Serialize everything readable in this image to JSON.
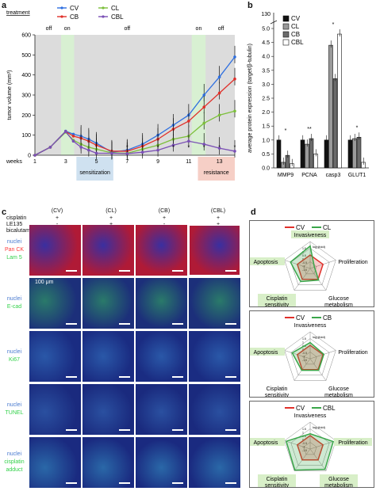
{
  "figure": {
    "panel_labels": [
      "a",
      "b",
      "c",
      "d"
    ]
  },
  "panel_a": {
    "treatment_label": "treatment",
    "phases": [
      "off",
      "on",
      "off",
      "on",
      "off"
    ],
    "shade_colors": {
      "gray": "#dcdcdc",
      "green": "#d8f0d2",
      "sensitization": "#cfe1f0",
      "resistance": "#f6cfc6"
    },
    "sensitization_label": "sensitization",
    "resistance_label": "resistance",
    "weeks_label": "weeks",
    "chart_data": {
      "type": "line",
      "ylabel": "tumor volume (mm³)",
      "xlabel": "weeks",
      "x": [
        1,
        2,
        3,
        3.5,
        4,
        4.5,
        5,
        6,
        7,
        8,
        9,
        10,
        11,
        12,
        13,
        14
      ],
      "x_ticks": [
        1,
        3,
        5,
        7,
        9,
        11,
        13
      ],
      "y_ticks": [
        0,
        100,
        200,
        300,
        400,
        500,
        600
      ],
      "ylim": [
        0,
        600
      ],
      "xlim": [
        1,
        14
      ],
      "series": [
        {
          "name": "CV",
          "color": "#2e6fe0",
          "marker": "diamond",
          "values": [
            0,
            40,
            120,
            105,
            95,
            80,
            60,
            15,
            25,
            55,
            100,
            150,
            200,
            300,
            390,
            490
          ]
        },
        {
          "name": "CB",
          "color": "#e0302a",
          "marker": "square",
          "values": [
            0,
            40,
            118,
            95,
            85,
            70,
            50,
            20,
            20,
            45,
            80,
            130,
            170,
            240,
            310,
            380
          ]
        },
        {
          "name": "CL",
          "color": "#7cbf3a",
          "marker": "triangle",
          "values": [
            0,
            40,
            115,
            75,
            55,
            40,
            30,
            12,
            10,
            30,
            50,
            80,
            95,
            160,
            200,
            220
          ]
        },
        {
          "name": "CBL",
          "color": "#7a4fb5",
          "marker": "cross",
          "values": [
            0,
            40,
            118,
            70,
            40,
            25,
            10,
            10,
            8,
            15,
            25,
            50,
            70,
            55,
            35,
            20
          ]
        }
      ]
    }
  },
  "panel_b": {
    "axis_break_top": "130",
    "chart_data": {
      "type": "bar",
      "ylabel": "average protein expression (target/β-tubulin)",
      "categories": [
        "MMP9",
        "PCNA",
        "casp3",
        "GLUT1"
      ],
      "y_ticks": [
        0,
        0.5,
        1.0,
        1.5,
        2.0,
        2.5,
        3.0,
        3.5,
        4.0,
        4.5,
        5.0
      ],
      "ylim": [
        0,
        5.0
      ],
      "break_labels": [
        130
      ],
      "series": [
        {
          "name": "CV",
          "color": "#111111",
          "values": [
            1.0,
            1.0,
            1.0,
            1.0
          ]
        },
        {
          "name": "CL",
          "color": "#9a9a9a",
          "values": [
            0.2,
            0.85,
            4.4,
            1.05
          ]
        },
        {
          "name": "CB",
          "color": "#6a6a6a",
          "values": [
            0.45,
            1.05,
            3.2,
            1.1
          ]
        },
        {
          "name": "CBL",
          "color": "#ffffff",
          "values": [
            0.15,
            0.5,
            4.8,
            0.2
          ]
        }
      ],
      "significance": [
        "*",
        "**",
        "*",
        "*"
      ]
    }
  },
  "panel_c": {
    "groups": [
      "(CV)",
      "(CL)",
      "(CB)",
      "(CBL)"
    ],
    "treatments": [
      {
        "name": "cisplatin",
        "marks": [
          "+",
          "+",
          "+",
          "+"
        ]
      },
      {
        "name": "LE135",
        "marks": [
          "-",
          "+",
          "-",
          "+"
        ]
      },
      {
        "name": "bicalutamide",
        "marks": [
          "-",
          "-",
          "+",
          "+"
        ]
      }
    ],
    "scale_text": "100 μm",
    "rows": [
      {
        "label_lines": [
          "nuclei",
          "Pan CK",
          "Lam 5"
        ],
        "colors": [
          "#4a7bd0",
          "#ff3b3b",
          "#33d14a"
        ],
        "bg": "#b01a36",
        "tint": "#3a2fa0"
      },
      {
        "label_lines": [
          "nuclei",
          "E-cad"
        ],
        "colors": [
          "#4a7bd0",
          "#33d14a"
        ],
        "bg": "#1c2f7a",
        "tint": "#2a7a6a"
      },
      {
        "label_lines": [
          "nuclei",
          "Ki67"
        ],
        "colors": [
          "#4a7bd0",
          "#33d14a"
        ],
        "bg": "#1a2c82",
        "tint": "#2a58a8"
      },
      {
        "label_lines": [
          "nuclei",
          "TUNEL"
        ],
        "colors": [
          "#4a7bd0",
          "#33d14a"
        ],
        "bg": "#1a2a7e",
        "tint": "#2a50a0"
      },
      {
        "label_lines": [
          "nuclei",
          "cisplatin",
          "adduct"
        ],
        "colors": [
          "#4a7bd0",
          "#33d14a",
          "#33d14a"
        ],
        "bg": "#1a2a80",
        "tint": "#2a68a8"
      }
    ]
  },
  "panel_d": {
    "spoke_labels": [
      "Invasiveness",
      "Proliferation",
      "Glucose metabolism",
      "Cisplatin sensitivity",
      "Apoptosis"
    ],
    "scale_note": "log₂(fold)",
    "ring_labels": [
      "1.5",
      "1",
      "0.5",
      "0",
      "-0.5",
      "-1",
      "-1.5"
    ],
    "charts": [
      {
        "legend": [
          {
            "name": "CV",
            "color": "#e0302a"
          },
          {
            "name": "CL",
            "color": "#3aa64a"
          }
        ],
        "highlighted": [
          "Invasiveness",
          "Cisplatin sensitivity",
          "Apoptosis"
        ],
        "chart_data": {
          "type": "radar",
          "series": [
            {
              "name": "CV",
              "values": [
                0,
                0,
                0,
                0,
                0
              ]
            },
            {
              "name": "CL",
              "values": [
                1.0,
                -1.0,
                0.1,
                0.3,
                0.8
              ]
            }
          ]
        }
      },
      {
        "legend": [
          {
            "name": "CV",
            "color": "#e0302a"
          },
          {
            "name": "CB",
            "color": "#3aa64a"
          }
        ],
        "highlighted": [
          "Apoptosis"
        ],
        "chart_data": {
          "type": "radar",
          "series": [
            {
              "name": "CV",
              "values": [
                0,
                0,
                0,
                0,
                0
              ]
            },
            {
              "name": "CB",
              "values": [
                0.3,
                0.1,
                0.1,
                0.1,
                0.6
              ]
            }
          ]
        }
      },
      {
        "legend": [
          {
            "name": "CV",
            "color": "#e0302a"
          },
          {
            "name": "CBL",
            "color": "#3aa64a"
          }
        ],
        "highlighted": [
          "Apoptosis",
          "Proliferation",
          "Cisplatin sensitivity",
          "Glucose metabolism"
        ],
        "chart_data": {
          "type": "radar",
          "series": [
            {
              "name": "CV",
              "values": [
                0,
                0,
                0,
                0,
                0
              ]
            },
            {
              "name": "CBL",
              "values": [
                0.2,
                1.2,
                1.3,
                1.4,
                1.3
              ]
            }
          ]
        }
      }
    ]
  }
}
